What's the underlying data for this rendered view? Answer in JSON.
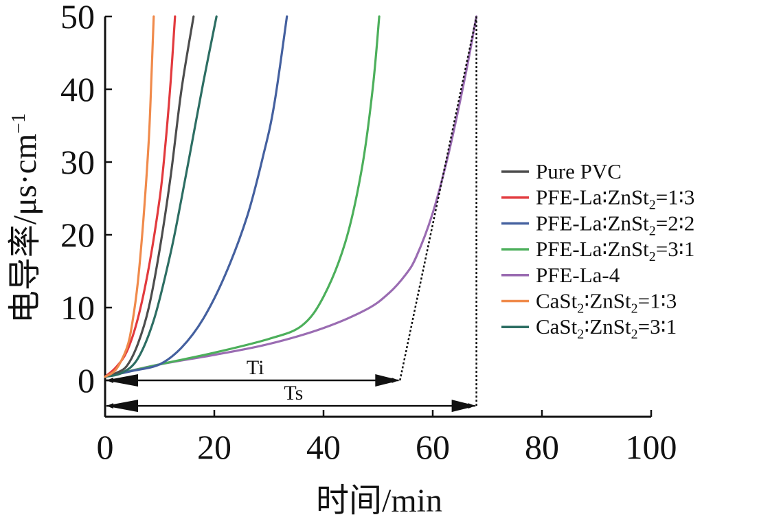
{
  "chart_data": {
    "type": "line",
    "xlabel": "时间/min",
    "ylabel": "电导率/μs·cm",
    "ylabel_superscript": "−1",
    "xlim": [
      0,
      100
    ],
    "ylim": [
      -5,
      50
    ],
    "xticks": [
      0,
      20,
      40,
      60,
      80,
      100
    ],
    "yticks": [
      0,
      10,
      20,
      30,
      40,
      50
    ],
    "xtick_labels": [
      "0",
      "20",
      "40",
      "60",
      "80",
      "100"
    ],
    "ytick_labels": [
      "0",
      "10",
      "20",
      "30",
      "40",
      "50"
    ],
    "legend_position": "right",
    "series": [
      {
        "name": "Pure PVC",
        "legend_parts": [
          [
            "Pure PVC",
            false
          ]
        ],
        "color": "#4d4d4d",
        "x": [
          0,
          2,
          4,
          6,
          8,
          10,
          12,
          14,
          16.2
        ],
        "y": [
          0.5,
          1.0,
          2.0,
          5.0,
          10.0,
          18.0,
          28.0,
          40.0,
          50.0
        ]
      },
      {
        "name": "PFE-La:ZnSt2=1:3",
        "legend_parts": [
          [
            "PFE-La∶ZnSt",
            false
          ],
          [
            "2",
            true
          ],
          [
            "=1∶3",
            false
          ]
        ],
        "color": "#e23a3e",
        "x": [
          0,
          2,
          4,
          6,
          8,
          10,
          11,
          12,
          12.8
        ],
        "y": [
          0.5,
          1.8,
          4.0,
          8.5,
          15.5,
          25.0,
          32.0,
          41.0,
          50.0
        ]
      },
      {
        "name": "PFE-La:ZnSt2=2:2",
        "legend_parts": [
          [
            "PFE-La∶ZnSt",
            false
          ],
          [
            "2",
            true
          ],
          [
            "=2∶2",
            false
          ]
        ],
        "color": "#44609f",
        "x": [
          0,
          5,
          10,
          14,
          18,
          22,
          26,
          29,
          31,
          33.3
        ],
        "y": [
          0.5,
          1.3,
          2.2,
          4.5,
          8.5,
          14.5,
          22.5,
          31.0,
          38.0,
          50.0
        ]
      },
      {
        "name": "PFE-La:ZnSt2=3:1",
        "legend_parts": [
          [
            "PFE-La∶ZnSt",
            false
          ],
          [
            "2",
            true
          ],
          [
            "=3∶1",
            false
          ]
        ],
        "color": "#4caf5b",
        "x": [
          0,
          10,
          20,
          30,
          36,
          40,
          44,
          47,
          49,
          50.2
        ],
        "y": [
          0.5,
          2.2,
          3.8,
          5.7,
          7.5,
          11.5,
          19.0,
          29.0,
          40.0,
          50.0
        ]
      },
      {
        "name": "PFE-La-4",
        "legend_parts": [
          [
            "PFE-La-4",
            false
          ]
        ],
        "color": "#9a6cb2",
        "x": [
          0,
          10,
          20,
          30,
          40,
          48,
          52,
          55,
          57,
          60,
          63,
          66,
          68
        ],
        "y": [
          0.5,
          2.2,
          3.5,
          5.0,
          7.2,
          9.8,
          12.0,
          14.5,
          17.0,
          23.0,
          31.5,
          42.0,
          50.0
        ]
      },
      {
        "name": "CaSt2:ZnSt2=1:3",
        "legend_parts": [
          [
            "CaSt",
            false
          ],
          [
            "2",
            true
          ],
          [
            "∶ZnSt",
            false
          ],
          [
            "2",
            true
          ],
          [
            "=1∶3",
            false
          ]
        ],
        "color": "#f08a4b",
        "x": [
          0,
          2,
          4,
          5,
          6,
          7,
          8,
          8.5,
          8.9
        ],
        "y": [
          0.5,
          1.5,
          4.5,
          8.0,
          13.5,
          22.0,
          33.0,
          42.0,
          50.0
        ]
      },
      {
        "name": "CaSt2:ZnSt2=3:1",
        "legend_parts": [
          [
            "CaSt",
            false
          ],
          [
            "2",
            true
          ],
          [
            "∶ZnSt",
            false
          ],
          [
            "2",
            true
          ],
          [
            "=3∶1",
            false
          ]
        ],
        "color": "#2d6e63",
        "x": [
          0,
          3,
          6,
          9,
          12,
          14,
          16,
          18,
          20.4
        ],
        "y": [
          0.5,
          1.0,
          3.0,
          8.5,
          17.5,
          25.0,
          33.0,
          41.0,
          50.0
        ]
      }
    ],
    "annotations": [
      {
        "label": "Ti",
        "x_start": 0,
        "x_end": 54,
        "y": 0
      },
      {
        "label": "Ts",
        "x_start": 0,
        "x_end": 68,
        "y": -3.5
      }
    ],
    "guide_lines": [
      {
        "style": "dotted",
        "points": [
          [
            54,
            0
          ],
          [
            68,
            50
          ]
        ]
      },
      {
        "style": "dotted",
        "points": [
          [
            68,
            -3.5
          ],
          [
            68,
            50
          ]
        ]
      }
    ]
  }
}
